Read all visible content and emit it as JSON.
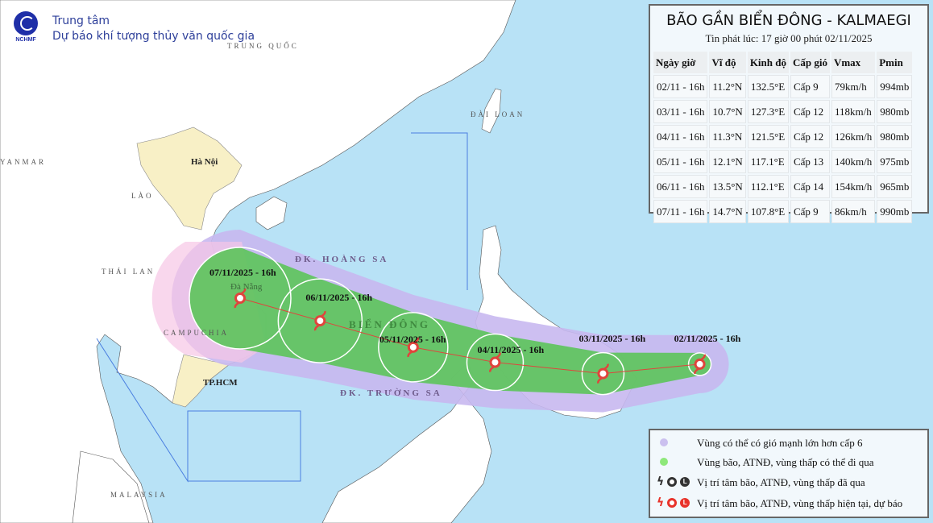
{
  "header": {
    "logo_text": "NCHMF",
    "org_line1": "Trung tâm",
    "org_line2": "Dự báo khí tượng thủy văn quốc gia"
  },
  "map_labels": {
    "china": "TRUNG QUỐC",
    "myanmar": "YANMAR",
    "laos": "LÀO",
    "thailand": "THÁI LAN",
    "cambodia": "CAMPUCHIA",
    "malaysia": "MALAYSIA",
    "taiwan": "ĐÀI LOAN",
    "hanoi": "Hà Nội",
    "danang": "Đà Nẵng",
    "hcm": "TP.HCM",
    "hoang_sa": "ĐK. HOÀNG SA",
    "truong_sa": "ĐK. TRƯỜNG SA",
    "bien_dong": "BIỂN ĐÔNG"
  },
  "colors": {
    "wind_zone": "#c8b8ef",
    "storm_zone": "#5cc45a",
    "land_wind_zone": "#f6c6e6",
    "track": "#e0443c",
    "vietnam_land": "#f8f0c6",
    "sea": "#b8e2f6"
  },
  "panel": {
    "title": "BÃO GẦN BIỂN ĐÔNG - KALMAEGI",
    "subtitle": "Tin phát lúc: 17 giờ 00 phút 02/11/2025",
    "columns": [
      "Ngày giờ",
      "Vĩ độ",
      "Kinh độ",
      "Cấp gió",
      "Vmax",
      "Pmin"
    ],
    "rows": [
      {
        "time": "02/11 - 16h",
        "lat": "11.2°N",
        "lon": "132.5°E",
        "level": "Cấp 9",
        "vmax": "79km/h",
        "pmin": "994mb",
        "label": "02/11/2025 - 16h",
        "lat_v": 11.2,
        "lon_v": 132.5
      },
      {
        "time": "03/11 - 16h",
        "lat": "10.7°N",
        "lon": "127.3°E",
        "level": "Cấp 12",
        "vmax": "118km/h",
        "pmin": "980mb",
        "label": "03/11/2025 - 16h",
        "lat_v": 10.7,
        "lon_v": 127.3
      },
      {
        "time": "04/11 - 16h",
        "lat": "11.3°N",
        "lon": "121.5°E",
        "level": "Cấp 12",
        "vmax": "126km/h",
        "pmin": "980mb",
        "label": "04/11/2025 - 16h",
        "lat_v": 11.3,
        "lon_v": 121.5
      },
      {
        "time": "05/11 - 16h",
        "lat": "12.1°N",
        "lon": "117.1°E",
        "level": "Cấp 13",
        "vmax": "140km/h",
        "pmin": "975mb",
        "label": "05/11/2025 - 16h",
        "lat_v": 12.1,
        "lon_v": 117.1
      },
      {
        "time": "06/11 - 16h",
        "lat": "13.5°N",
        "lon": "112.1°E",
        "level": "Cấp 14",
        "vmax": "154km/h",
        "pmin": "965mb",
        "label": "06/11/2025 - 16h",
        "lat_v": 13.5,
        "lon_v": 112.1
      },
      {
        "time": "07/11 - 16h",
        "lat": "14.7°N",
        "lon": "107.8°E",
        "level": "Cấp 9",
        "vmax": "86km/h",
        "pmin": "990mb",
        "label": "07/11/2025 - 16h",
        "lat_v": 14.7,
        "lon_v": 107.8
      }
    ]
  },
  "legend": {
    "items": [
      {
        "label": "Vùng có thể có gió mạnh lớn hơn cấp 6",
        "icon": "lavender-dot"
      },
      {
        "label": "Vùng bão, ATNĐ, vùng thấp có thể đi qua",
        "icon": "green-dot"
      },
      {
        "label": "Vị trí tâm bão, ATNĐ, vùng thấp đã qua",
        "icon": "black-storm-icons"
      },
      {
        "label": "Vị trí tâm bão, ATNĐ, vùng thấp hiện tại, dự báo",
        "icon": "red-storm-icons"
      }
    ]
  }
}
